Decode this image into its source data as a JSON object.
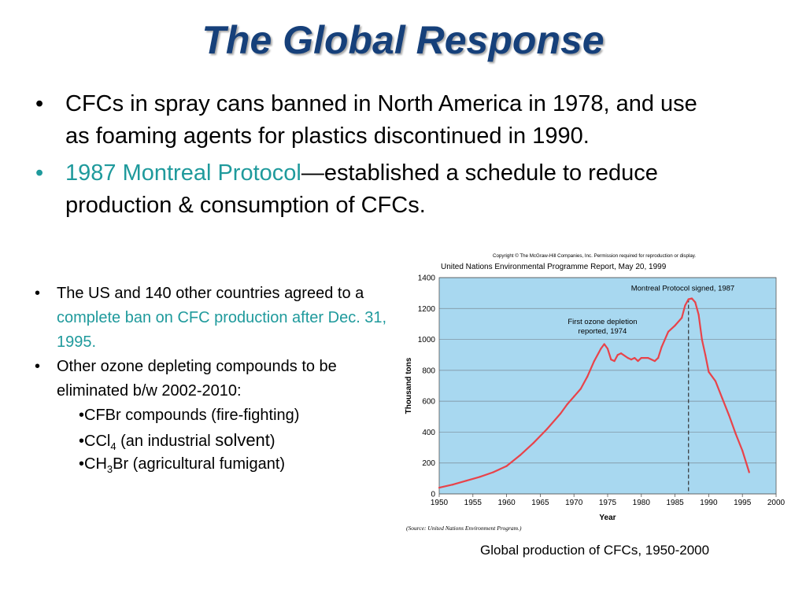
{
  "slide": {
    "title": "The Global Response",
    "bullets": [
      {
        "text": "CFCs in spray cans banned in North America in 1978, and use as foaming agents for plastics discontinued in 1990."
      },
      {
        "highlight": "1987 Montreal Protocol",
        "text": "—established a schedule to reduce production & consumption of CFCs."
      }
    ],
    "sub_bullets": [
      {
        "text": "The US and 140 other countries agreed to a ",
        "highlight": "complete ban on CFC production after Dec. 31, 1995."
      },
      {
        "text": "Other ozone depleting compounds to be eliminated b/w 2002-2010:"
      }
    ],
    "compounds": [
      {
        "pre": "•CFBr compounds (fire-fighting)"
      },
      {
        "pre": "•CCl",
        "sub": "4",
        "mid": " (an industrial ",
        "big": "solvent",
        "post": ")"
      },
      {
        "pre": "•CH",
        "sub": "3",
        "post": "Br (agricultural fumigant)"
      }
    ],
    "caption": "Global production of CFCs, 1950-2000",
    "bullet_glyph": "•",
    "colors": {
      "title": "#16407a",
      "highlight": "#1f9a9c",
      "plot_bg": "#a8d8f0",
      "line": "#e8434a"
    }
  },
  "chart_data": {
    "type": "line",
    "copyright": "Copyright © The McGraw-Hill Companies, Inc. Permission required for reproduction or display.",
    "title": "United Nations Environmental Programme Report, May 20, 1999",
    "xlabel": "Year",
    "ylabel": "Thousand tons",
    "xlim": [
      1950,
      2000
    ],
    "ylim": [
      0,
      1400
    ],
    "xticks": [
      1950,
      1955,
      1960,
      1965,
      1970,
      1975,
      1980,
      1985,
      1990,
      1995,
      2000
    ],
    "yticks": [
      0,
      200,
      400,
      600,
      800,
      1000,
      1200,
      1400
    ],
    "grid": true,
    "source": "(Source: United Nations Environment Program.)",
    "annotations": [
      {
        "text": "Montreal Protocol signed, 1987",
        "x": 1987
      },
      {
        "lines": [
          "First ozone depletion",
          "reported, 1974"
        ],
        "x": 1974
      }
    ],
    "series": [
      {
        "x": [
          1950,
          1952,
          1954,
          1956,
          1958,
          1960,
          1962,
          1964,
          1966,
          1968,
          1969,
          1970,
          1971,
          1972,
          1973,
          1974,
          1974.5,
          1975,
          1975.5,
          1976,
          1976.5,
          1977,
          1978,
          1978.5,
          1979,
          1979.5,
          1980,
          1981,
          1982,
          1982.5,
          1983,
          1984,
          1985,
          1986,
          1986.5,
          1987,
          1987.5,
          1988,
          1988.5,
          1989,
          1989.5,
          1990,
          1991,
          1992,
          1993,
          1994,
          1995,
          1996
        ],
        "y": [
          40,
          60,
          85,
          110,
          140,
          180,
          250,
          330,
          420,
          520,
          580,
          630,
          680,
          760,
          860,
          940,
          970,
          940,
          870,
          860,
          900,
          910,
          880,
          870,
          880,
          860,
          880,
          880,
          860,
          880,
          950,
          1050,
          1090,
          1140,
          1220,
          1260,
          1265,
          1240,
          1160,
          1000,
          900,
          790,
          730,
          620,
          510,
          390,
          280,
          140
        ]
      }
    ]
  }
}
